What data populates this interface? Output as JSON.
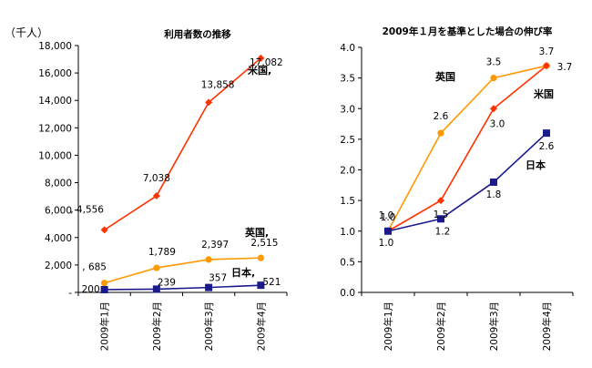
{
  "chart_data": [
    {
      "type": "line",
      "title": "利用者数の推移",
      "unit": "（千人）",
      "categories": [
        "2009年1月",
        "2009年2月",
        "2009年3月",
        "2009年4月"
      ],
      "ylim": [
        0,
        18000
      ],
      "yticks": [
        "-",
        "2,000",
        "4,000",
        "6,000",
        "8,000",
        "10,000",
        "12,000",
        "14,000",
        "16,000",
        "18,000"
      ],
      "grid": false,
      "series": [
        {
          "name": "米国",
          "color": "#ff3300",
          "marker": "diamond",
          "values": [
            4556,
            7038,
            13858,
            17082
          ],
          "labels": [
            ", 4,556",
            "7,038",
            "13,858",
            "17,082"
          ]
        },
        {
          "name": "英国",
          "color": "#ff9900",
          "marker": "circle",
          "values": [
            685,
            1789,
            2397,
            2515
          ],
          "labels": [
            ", 685",
            "1,789",
            "2,397",
            "2,515"
          ]
        },
        {
          "name": "日本",
          "color": "#1a1a8c",
          "marker": "square",
          "values": [
            200,
            239,
            357,
            521
          ],
          "labels": [
            "200",
            "239",
            "357",
            "521"
          ]
        }
      ],
      "series_labels": [
        "米国,",
        "英国,",
        "日本, "
      ]
    },
    {
      "type": "line",
      "title": "2009年１月を基準とした場合の伸び率",
      "categories": [
        "2009年1月",
        "2009年2月",
        "2009年3月",
        "2009年4月"
      ],
      "ylim": [
        0,
        4.0
      ],
      "yticks": [
        "0.0",
        "0.5",
        "1.0",
        "1.5",
        "2.0",
        "2.5",
        "3.0",
        "3.5",
        "4.0"
      ],
      "grid": false,
      "series": [
        {
          "name": "英国",
          "color": "#ff9900",
          "marker": "circle",
          "values": [
            1.0,
            2.6,
            3.5,
            3.7
          ],
          "labels": [
            "1.0",
            "2.6",
            "3.5",
            "3.7"
          ]
        },
        {
          "name": "米国",
          "color": "#ff3300",
          "marker": "diamond",
          "values": [
            1.0,
            1.5,
            3.0,
            3.7
          ],
          "labels": [
            "1.0",
            "1.5",
            "3.0",
            "3.7"
          ]
        },
        {
          "name": "日本",
          "color": "#1a1a8c",
          "marker": "square",
          "values": [
            1.0,
            1.2,
            1.8,
            2.6
          ],
          "labels": [
            "1.0",
            "1.2",
            "1.8",
            "2.6"
          ]
        }
      ],
      "series_labels": [
        "英国",
        "米国",
        "日本"
      ]
    }
  ]
}
